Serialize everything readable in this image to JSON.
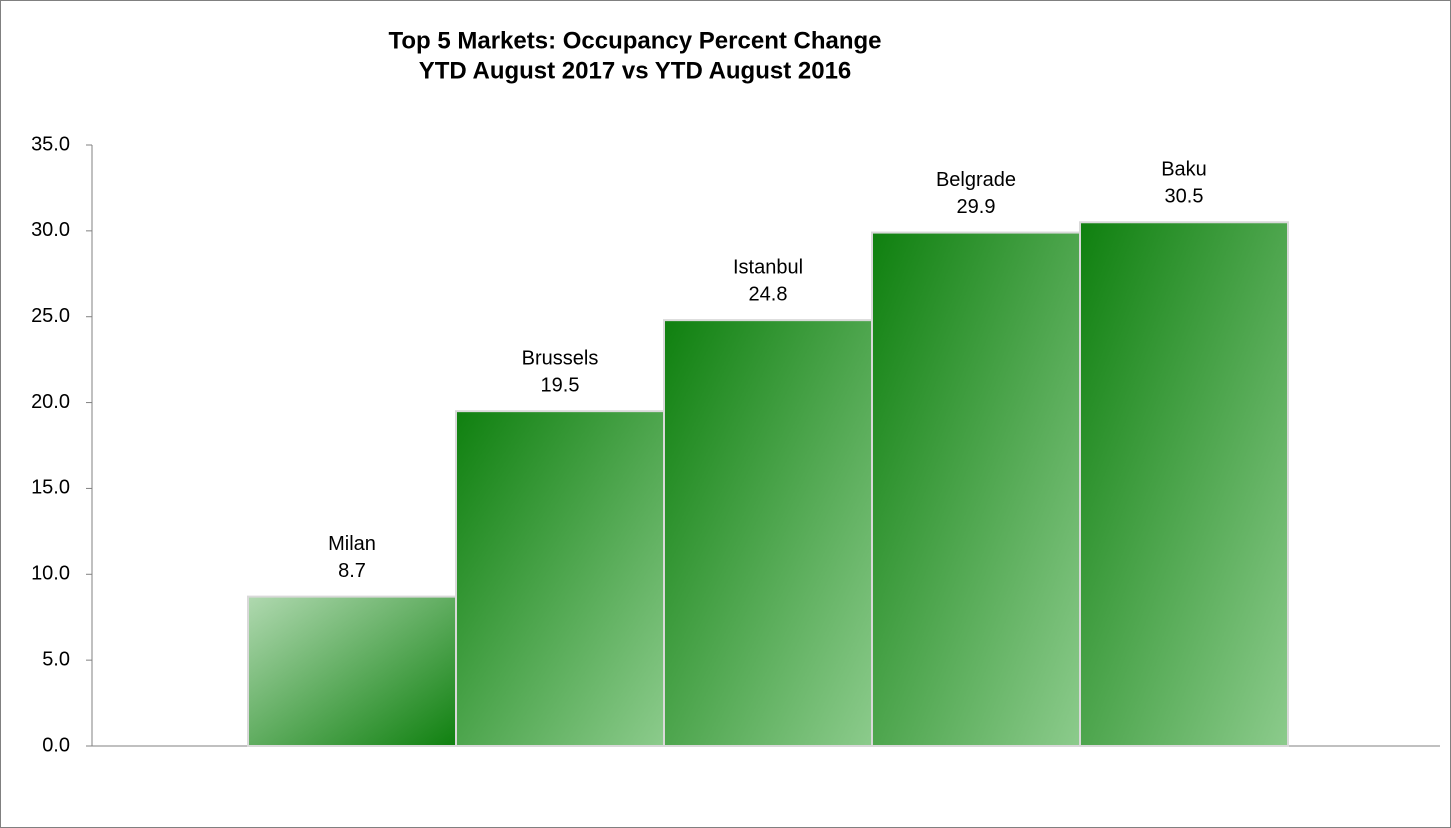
{
  "chart_data": {
    "type": "bar",
    "title": "Top 5 Markets: Occupancy Percent Change",
    "subtitle": "YTD August 2017 vs YTD August 2016",
    "categories": [
      "Milan",
      "Brussels",
      "Istanbul",
      "Belgrade",
      "Baku"
    ],
    "values": [
      8.7,
      19.5,
      24.8,
      29.9,
      30.5
    ],
    "color": "#0f800f",
    "ylim": [
      0,
      35
    ],
    "yticks": [
      {
        "value": 0,
        "label": "0.0"
      },
      {
        "value": 5,
        "label": "5.0"
      },
      {
        "value": 10,
        "label": "10.0"
      },
      {
        "value": 15,
        "label": "15.0"
      },
      {
        "value": 20,
        "label": "20.0"
      },
      {
        "value": 25,
        "label": "25.0"
      },
      {
        "value": 30,
        "label": "30.0"
      },
      {
        "value": 35,
        "label": "35.0"
      }
    ],
    "grid": false
  }
}
